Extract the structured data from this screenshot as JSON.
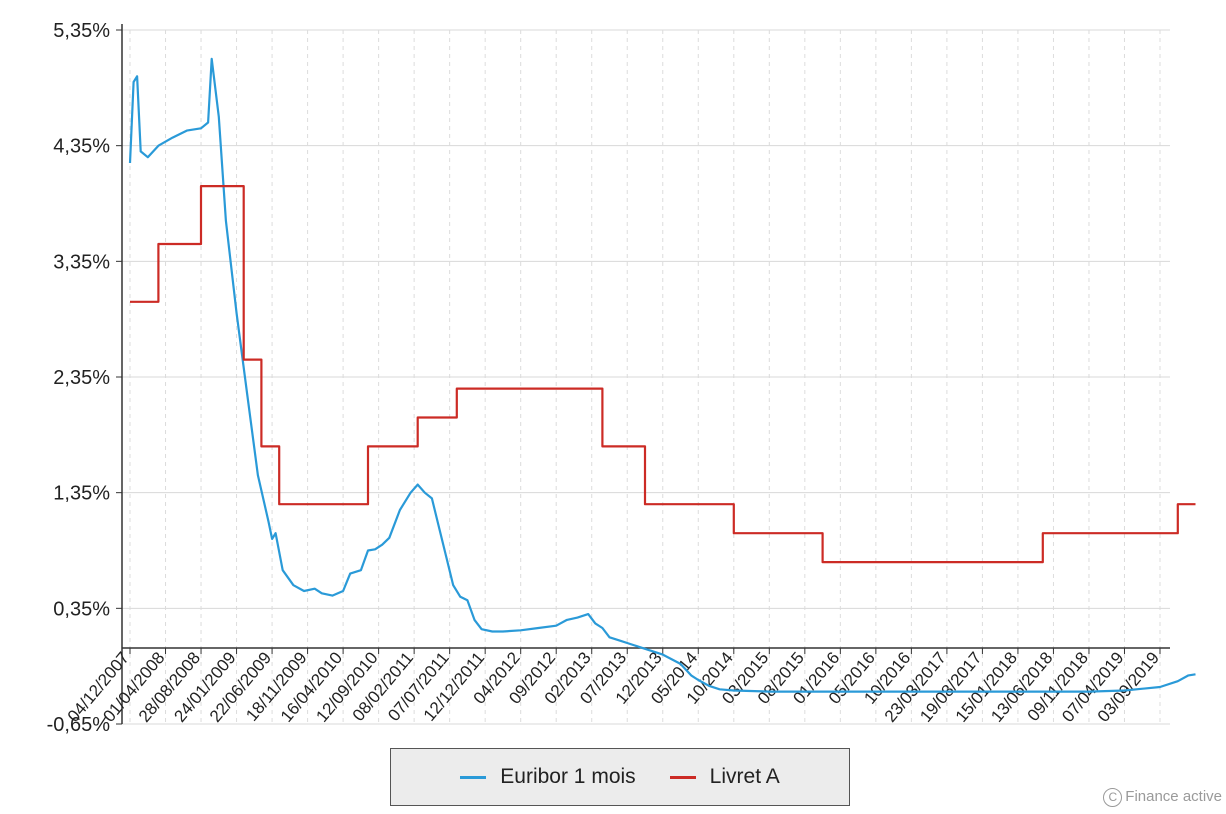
{
  "chart_data": {
    "type": "line",
    "y_ticks": [
      "5,35%",
      "4,35%",
      "3,35%",
      "2,35%",
      "1,35%",
      "0,35%",
      "-0,65%"
    ],
    "ylim": [
      -0.65,
      5.35
    ],
    "x_ticks": [
      "04/12/2007",
      "01/04/2008",
      "28/08/2008",
      "24/01/2009",
      "22/06/2009",
      "18/11/2009",
      "16/04/2010",
      "12/09/2010",
      "08/02/2011",
      "07/07/2011",
      "12/12/2011",
      "04/2012",
      "09/2012",
      "02/2013",
      "07/2013",
      "12/2013",
      "05/2014",
      "10/2014",
      "03/2015",
      "08/2015",
      "01/2016",
      "05/2016",
      "10/2016",
      "23/03/2017",
      "19/08/2017",
      "15/01/2018",
      "13/06/2018",
      "09/11/2018",
      "07/04/2019",
      "03/09/2019"
    ],
    "grid": true,
    "legend_position": "bottom",
    "series": [
      {
        "name": "Euribor 1 mois",
        "color": "#2a9ad8",
        "points": [
          [
            0,
            4.2
          ],
          [
            0.1,
            4.9
          ],
          [
            0.2,
            4.95
          ],
          [
            0.3,
            4.3
          ],
          [
            0.5,
            4.25
          ],
          [
            0.8,
            4.35
          ],
          [
            1.2,
            4.42
          ],
          [
            1.6,
            4.48
          ],
          [
            2.0,
            4.5
          ],
          [
            2.2,
            4.55
          ],
          [
            2.3,
            5.1
          ],
          [
            2.5,
            4.6
          ],
          [
            2.7,
            3.7
          ],
          [
            3.0,
            2.9
          ],
          [
            3.3,
            2.2
          ],
          [
            3.6,
            1.5
          ],
          [
            3.9,
            1.1
          ],
          [
            4.0,
            0.95
          ],
          [
            4.1,
            1.0
          ],
          [
            4.3,
            0.68
          ],
          [
            4.6,
            0.55
          ],
          [
            4.9,
            0.5
          ],
          [
            5.2,
            0.52
          ],
          [
            5.4,
            0.48
          ],
          [
            5.7,
            0.46
          ],
          [
            6.0,
            0.5
          ],
          [
            6.2,
            0.65
          ],
          [
            6.5,
            0.68
          ],
          [
            6.7,
            0.85
          ],
          [
            6.9,
            0.86
          ],
          [
            7.1,
            0.9
          ],
          [
            7.3,
            0.96
          ],
          [
            7.6,
            1.2
          ],
          [
            7.9,
            1.35
          ],
          [
            8.1,
            1.42
          ],
          [
            8.3,
            1.35
          ],
          [
            8.5,
            1.3
          ],
          [
            8.7,
            1.05
          ],
          [
            8.9,
            0.8
          ],
          [
            9.1,
            0.55
          ],
          [
            9.3,
            0.45
          ],
          [
            9.5,
            0.42
          ],
          [
            9.7,
            0.25
          ],
          [
            9.9,
            0.17
          ],
          [
            10.2,
            0.15
          ],
          [
            10.5,
            0.15
          ],
          [
            11.0,
            0.16
          ],
          [
            11.5,
            0.18
          ],
          [
            12.0,
            0.2
          ],
          [
            12.3,
            0.25
          ],
          [
            12.6,
            0.27
          ],
          [
            12.9,
            0.3
          ],
          [
            13.1,
            0.22
          ],
          [
            13.3,
            0.18
          ],
          [
            13.5,
            0.1
          ],
          [
            13.8,
            0.07
          ],
          [
            14.0,
            0.05
          ],
          [
            14.5,
            0.0
          ],
          [
            15.0,
            -0.05
          ],
          [
            15.5,
            -0.13
          ],
          [
            15.8,
            -0.23
          ],
          [
            16.0,
            -0.27
          ],
          [
            16.3,
            -0.32
          ],
          [
            16.6,
            -0.35
          ],
          [
            17.0,
            -0.36
          ],
          [
            18.0,
            -0.37
          ],
          [
            19.0,
            -0.37
          ],
          [
            20.0,
            -0.37
          ],
          [
            21.0,
            -0.37
          ],
          [
            22.0,
            -0.37
          ],
          [
            23.0,
            -0.37
          ],
          [
            24.0,
            -0.37
          ],
          [
            25.0,
            -0.37
          ],
          [
            26.0,
            -0.37
          ],
          [
            27.0,
            -0.37
          ],
          [
            28.0,
            -0.36
          ],
          [
            29.0,
            -0.33
          ],
          [
            29.5,
            -0.28
          ],
          [
            29.8,
            -0.23
          ],
          [
            30.0,
            -0.22
          ]
        ]
      },
      {
        "name": "Livret A",
        "color": "#cc2b25",
        "points": [
          [
            0,
            3.0
          ],
          [
            0.8,
            3.0
          ],
          [
            0.8,
            3.5
          ],
          [
            2.0,
            3.5
          ],
          [
            2.0,
            4.0
          ],
          [
            3.2,
            4.0
          ],
          [
            3.2,
            2.5
          ],
          [
            3.7,
            2.5
          ],
          [
            3.7,
            1.75
          ],
          [
            4.2,
            1.75
          ],
          [
            4.2,
            1.25
          ],
          [
            6.7,
            1.25
          ],
          [
            6.7,
            1.75
          ],
          [
            8.1,
            1.75
          ],
          [
            8.1,
            2.0
          ],
          [
            9.2,
            2.0
          ],
          [
            9.2,
            2.25
          ],
          [
            13.3,
            2.25
          ],
          [
            13.3,
            1.75
          ],
          [
            14.5,
            1.75
          ],
          [
            14.5,
            1.25
          ],
          [
            17.0,
            1.25
          ],
          [
            17.0,
            1.0
          ],
          [
            19.5,
            1.0
          ],
          [
            19.5,
            0.75
          ],
          [
            25.7,
            0.75
          ],
          [
            25.7,
            1.0
          ],
          [
            29.5,
            1.0
          ],
          [
            29.5,
            1.25
          ],
          [
            30.0,
            1.25
          ]
        ]
      }
    ]
  },
  "legend": {
    "items": [
      {
        "label": "Euribor 1 mois",
        "color": "#2a9ad8"
      },
      {
        "label": "Livret A",
        "color": "#cc2b25"
      }
    ]
  },
  "credit": {
    "symbol": "C",
    "label": "Finance active"
  }
}
